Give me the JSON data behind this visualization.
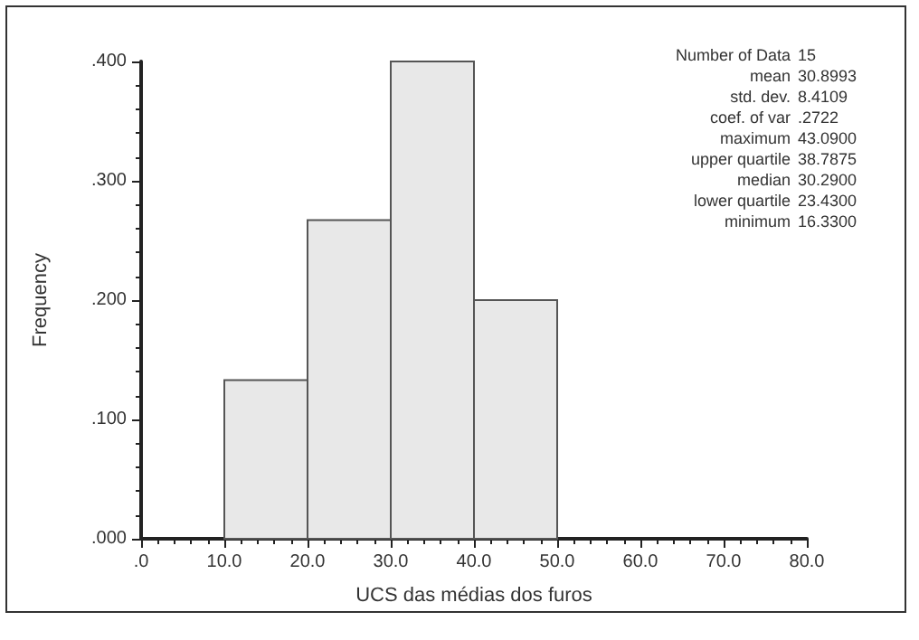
{
  "chart_data": {
    "type": "histogram",
    "xlabel": "UCS das médias dos furos",
    "ylabel": "Frequency",
    "bins": [
      10,
      20,
      30,
      40,
      50
    ],
    "values": [
      0.133,
      0.267,
      0.4,
      0.2
    ],
    "color": "#e8e8e8",
    "xlim": [
      0,
      80
    ],
    "xticks": [
      {
        "value": 0,
        "label": ".0"
      },
      {
        "value": 10,
        "label": "10.0"
      },
      {
        "value": 20,
        "label": "20.0"
      },
      {
        "value": 30,
        "label": "30.0"
      },
      {
        "value": 40,
        "label": "40.0"
      },
      {
        "value": 50,
        "label": "50.0"
      },
      {
        "value": 60,
        "label": "60.0"
      },
      {
        "value": 70,
        "label": "70.0"
      },
      {
        "value": 80,
        "label": "80.0"
      }
    ],
    "ylim": [
      0,
      0.4
    ],
    "yticks": [
      {
        "value": 0,
        "label": ".000"
      },
      {
        "value": 0.1,
        "label": ".100"
      },
      {
        "value": 0.2,
        "label": ".200"
      },
      {
        "value": 0.3,
        "label": ".300"
      },
      {
        "value": 0.4,
        "label": ".400"
      }
    ],
    "grid": false,
    "annotations": [
      "Number of Data 15",
      "mean 30.8993",
      "std. dev. 8.4109",
      "coef. of var .2722",
      "maximum 43.0900",
      "upper quartile 38.7875",
      "median 30.2900",
      "lower quartile 23.4300",
      "minimum 16.3300"
    ]
  }
}
